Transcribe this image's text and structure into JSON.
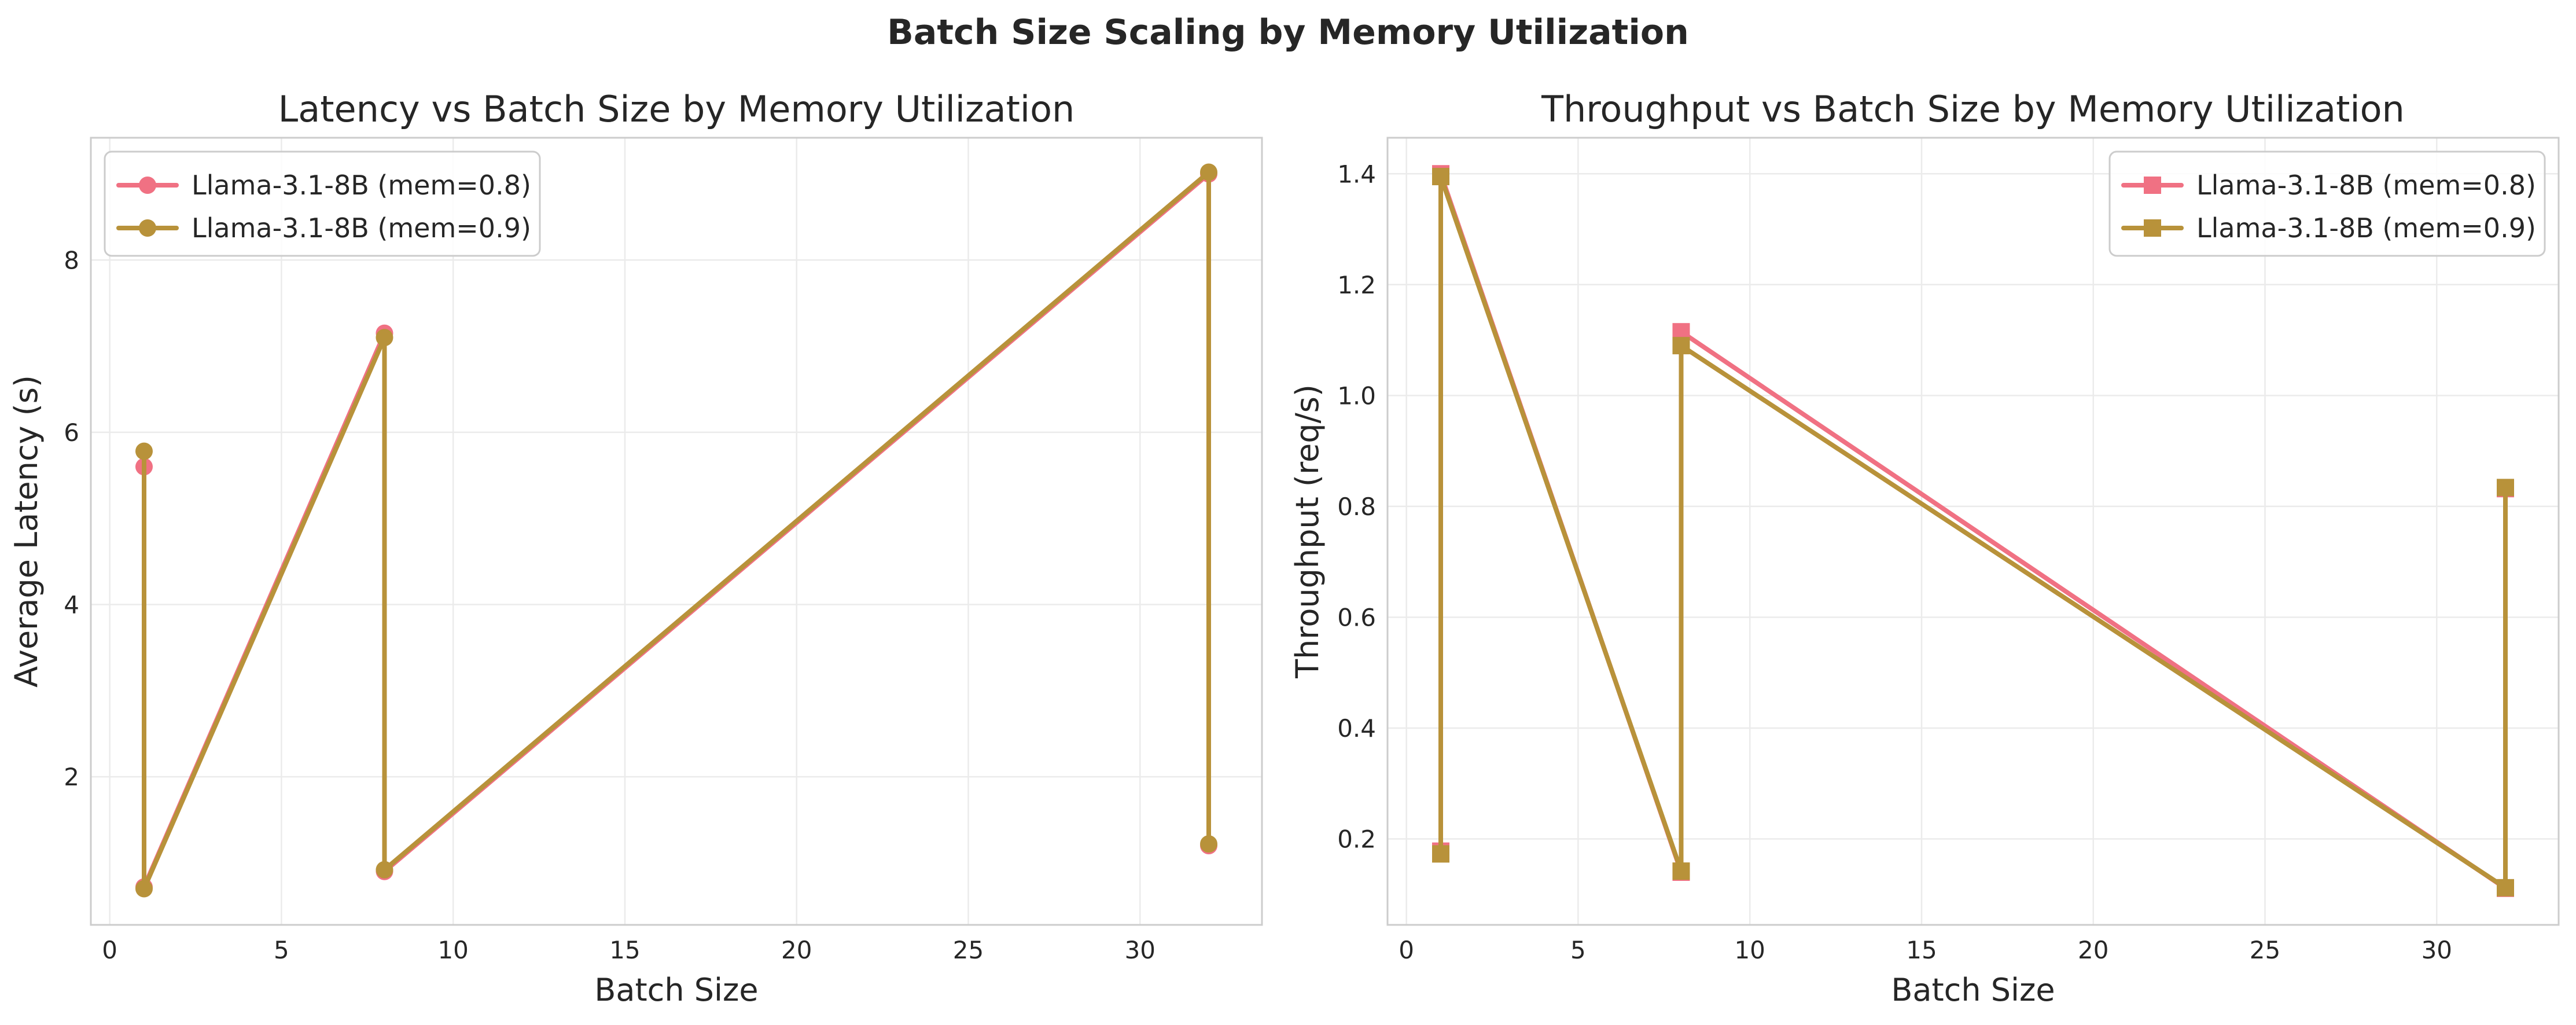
{
  "figure": {
    "suptitle": "Batch Size Scaling by Memory Utilization"
  },
  "chart_data": [
    {
      "type": "line",
      "title": "Latency vs Batch Size by Memory Utilization",
      "xlabel": "Batch Size",
      "ylabel": "Average Latency (s)",
      "xlim": [
        -0.55,
        33.55
      ],
      "ylim": [
        0.28,
        9.42
      ],
      "xticks": [
        0,
        5,
        10,
        15,
        20,
        25,
        30
      ],
      "yticks": [
        2,
        4,
        6,
        8
      ],
      "grid": true,
      "legend": "upper left",
      "marker": "circle",
      "series": [
        {
          "name": "Llama-3.1-8B (mem=0.8)",
          "color": "#f07183",
          "x": [
            1,
            1,
            8,
            8,
            32,
            32
          ],
          "y": [
            5.6,
            0.72,
            7.15,
            0.9,
            9.0,
            1.2
          ]
        },
        {
          "name": "Llama-3.1-8B (mem=0.9)",
          "color": "#b8923a",
          "x": [
            1,
            1,
            8,
            8,
            32,
            32
          ],
          "y": [
            5.78,
            0.7,
            7.1,
            0.92,
            9.02,
            1.22
          ]
        }
      ]
    },
    {
      "type": "line",
      "title": "Throughput vs Batch Size by Memory Utilization",
      "xlabel": "Batch Size",
      "ylabel": "Throughput (req/s)",
      "xlim": [
        -0.55,
        33.55
      ],
      "ylim": [
        0.045,
        1.465
      ],
      "xticks": [
        0,
        5,
        10,
        15,
        20,
        25,
        30
      ],
      "yticks": [
        0.2,
        0.4,
        0.6,
        0.8,
        1.0,
        1.2,
        1.4
      ],
      "grid": true,
      "legend": "upper right",
      "marker": "square",
      "series": [
        {
          "name": "Llama-3.1-8B (mem=0.8)",
          "color": "#f07183",
          "x": [
            1,
            1,
            8,
            8,
            32,
            32
          ],
          "y": [
            0.178,
            1.4,
            0.14,
            1.115,
            0.111,
            0.832
          ]
        },
        {
          "name": "Llama-3.1-8B (mem=0.9)",
          "color": "#b8923a",
          "x": [
            1,
            1,
            8,
            8,
            32,
            32
          ],
          "y": [
            0.173,
            1.395,
            0.142,
            1.09,
            0.112,
            0.834
          ]
        }
      ]
    }
  ]
}
